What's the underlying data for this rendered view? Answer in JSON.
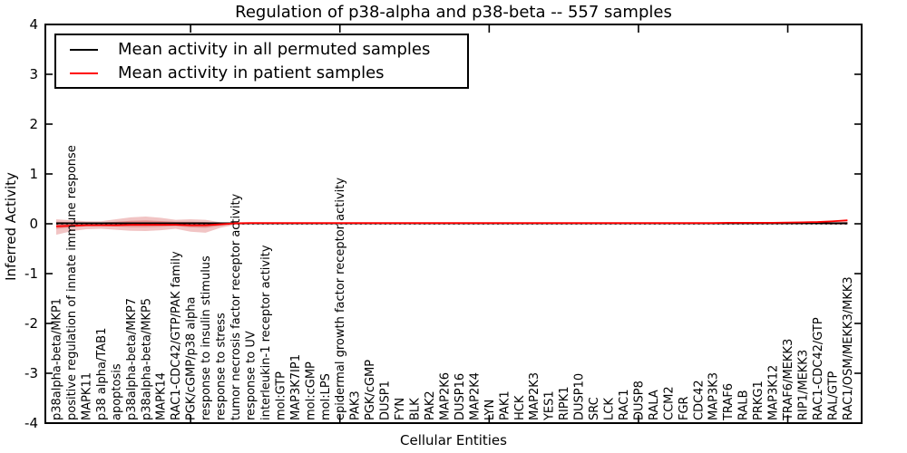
{
  "chart_data": {
    "type": "line",
    "title": "Regulation of p38-alpha and p38-beta -- 557 samples",
    "xlabel": "Cellular Entities",
    "ylabel": "Inferred Activity",
    "ylim": [
      -4,
      4
    ],
    "yticks": [
      4,
      3,
      2,
      1,
      0,
      -1,
      -2,
      -3,
      -4
    ],
    "xticks": [
      10,
      20,
      30,
      40,
      50
    ],
    "grid": false,
    "legend_position": "upper left",
    "zero_line": {
      "value": 0,
      "style": "dotted",
      "color": "#000000"
    },
    "categories": [
      "p38alpha-beta/MKP1",
      "positive regulation of innate immune response",
      "MAPK11",
      "p38 alpha/TAB1",
      "apoptosis",
      "p38alpha-beta/MKP7",
      "p38alpha-beta/MKP5",
      "MAPK14",
      "RAC1-CDC42/GTP/PAK family",
      "PGK/cGMP/p38 alpha",
      "response to insulin stimulus",
      "response to stress",
      "tumor necrosis factor receptor activity",
      "response to UV",
      "interleukin-1 receptor activity",
      "mol:GTP",
      "MAP3K7IP1",
      "mol:cGMP",
      "mol:LPS",
      "epidermal growth factor receptor activity",
      "PAK3",
      "PGK/cGMP",
      "DUSP1",
      "FYN",
      "BLK",
      "PAK2",
      "MAP2K6",
      "DUSP16",
      "MAP2K4",
      "LYN",
      "PAK1",
      "HCK",
      "MAP2K3",
      "YES1",
      "RIPK1",
      "DUSP10",
      "SRC",
      "LCK",
      "RAC1",
      "DUSP8",
      "RALA",
      "CCM2",
      "FGR",
      "CDC42",
      "MAP3K3",
      "TRAF6",
      "RALB",
      "PRKG1",
      "MAP3K12",
      "TRAF6/MEKK3",
      "RIP1/MEKK3",
      "RAC1-CDC42/GTP",
      "RAL/GTP",
      "RAC1/OSM/MEKK3/MKK3"
    ],
    "series": [
      {
        "name": "Mean activity in all permuted samples",
        "color": "#000000",
        "values": [
          0.01,
          0.01,
          0.01,
          0.01,
          0.01,
          0.01,
          0.01,
          0.01,
          0.01,
          0.01,
          0.01,
          0.01,
          0.01,
          0.01,
          0.01,
          0.01,
          0.01,
          0.01,
          0.01,
          0.01,
          0.01,
          0.01,
          0.01,
          0.01,
          0.01,
          0.01,
          0.01,
          0.01,
          0.01,
          0.01,
          0.01,
          0.01,
          0.01,
          0.01,
          0.01,
          0.01,
          0.01,
          0.01,
          0.01,
          0.01,
          0.01,
          0.01,
          0.01,
          0.01,
          0.01,
          0.01,
          0.01,
          0.01,
          0.01,
          0.01,
          0.01,
          0.01,
          0.01,
          0.01
        ]
      },
      {
        "name": "Mean activity in patient samples",
        "color": "#ff0000",
        "values": [
          -0.05,
          -0.04,
          -0.03,
          -0.03,
          -0.03,
          -0.02,
          -0.02,
          -0.02,
          -0.02,
          -0.03,
          -0.03,
          -0.01,
          0.01,
          0.015,
          0.015,
          0.015,
          0.015,
          0.015,
          0.015,
          0.015,
          0.015,
          0.015,
          0.015,
          0.015,
          0.015,
          0.015,
          0.015,
          0.015,
          0.015,
          0.015,
          0.015,
          0.015,
          0.015,
          0.015,
          0.015,
          0.015,
          0.015,
          0.015,
          0.015,
          0.015,
          0.015,
          0.015,
          0.015,
          0.015,
          0.015,
          0.02,
          0.02,
          0.02,
          0.02,
          0.025,
          0.03,
          0.035,
          0.05,
          0.07
        ]
      }
    ],
    "uncertainty_bands": {
      "color": "#cc2a2a",
      "outer": {
        "opacity": 0.28,
        "upper": [
          0.09,
          0.07,
          0.05,
          0.05,
          0.09,
          0.13,
          0.145,
          0.12,
          0.08,
          0.09,
          0.08,
          0.03,
          0.012,
          0.01,
          0.01,
          0.01,
          0.01,
          0.01,
          0.01,
          0.01,
          0.01,
          0.01,
          0.01,
          0.01,
          0.01,
          0.01,
          0.01,
          0.01,
          0.01,
          0.01,
          0.01,
          0.01,
          0.01,
          0.01,
          0.01,
          0.01,
          0.01,
          0.01,
          0.01,
          0.01,
          0.01,
          0.01,
          0.01,
          0.01,
          0.01,
          0.01,
          0.01,
          0.01,
          0.01,
          0.01,
          0.01,
          0.02,
          0.04,
          0.07
        ],
        "lower": [
          -0.22,
          -0.15,
          -0.11,
          -0.1,
          -0.12,
          -0.14,
          -0.145,
          -0.13,
          -0.1,
          -0.16,
          -0.18,
          -0.08,
          -0.02,
          -0.008,
          -0.008,
          -0.008,
          -0.008,
          -0.008,
          -0.008,
          -0.008,
          -0.008,
          -0.008,
          -0.008,
          -0.008,
          -0.008,
          -0.008,
          -0.008,
          -0.008,
          -0.008,
          -0.008,
          -0.008,
          -0.008,
          -0.008,
          -0.008,
          -0.008,
          -0.008,
          -0.008,
          -0.008,
          -0.008,
          -0.008,
          -0.008,
          -0.008,
          -0.008,
          -0.008,
          -0.008,
          -0.008,
          -0.008,
          -0.008,
          -0.008,
          -0.008,
          -0.008,
          -0.01,
          -0.02,
          -0.02
        ]
      },
      "inner": {
        "opacity": 0.34,
        "upper": [
          0.04,
          0.03,
          0.025,
          0.025,
          0.04,
          0.06,
          0.065,
          0.055,
          0.04,
          0.04,
          0.035,
          0.015,
          0.006,
          0.005,
          0.005,
          0.005,
          0.005,
          0.005,
          0.005,
          0.005,
          0.005,
          0.005,
          0.005,
          0.005,
          0.005,
          0.005,
          0.005,
          0.005,
          0.005,
          0.005,
          0.005,
          0.005,
          0.005,
          0.005,
          0.005,
          0.005,
          0.005,
          0.005,
          0.005,
          0.005,
          0.005,
          0.005,
          0.005,
          0.005,
          0.005,
          0.005,
          0.005,
          0.005,
          0.005,
          0.005,
          0.005,
          0.01,
          0.02,
          0.035
        ],
        "lower": [
          -0.1,
          -0.07,
          -0.05,
          -0.045,
          -0.055,
          -0.065,
          -0.065,
          -0.06,
          -0.045,
          -0.07,
          -0.08,
          -0.04,
          -0.01,
          -0.004,
          -0.004,
          -0.004,
          -0.004,
          -0.004,
          -0.004,
          -0.004,
          -0.004,
          -0.004,
          -0.004,
          -0.004,
          -0.004,
          -0.004,
          -0.004,
          -0.004,
          -0.004,
          -0.004,
          -0.004,
          -0.004,
          -0.004,
          -0.004,
          -0.004,
          -0.004,
          -0.004,
          -0.004,
          -0.004,
          -0.004,
          -0.004,
          -0.004,
          -0.004,
          -0.004,
          -0.004,
          -0.004,
          -0.004,
          -0.004,
          -0.004,
          -0.004,
          -0.004,
          -0.005,
          -0.01,
          -0.01
        ]
      }
    }
  }
}
